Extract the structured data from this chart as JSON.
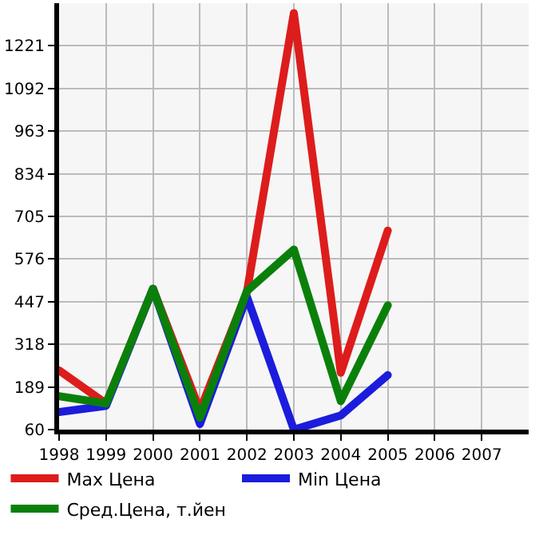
{
  "chart_data": {
    "type": "line",
    "x": [
      1998,
      1999,
      2000,
      2001,
      2002,
      2003,
      2004,
      2005
    ],
    "series": [
      {
        "name": "Max Цена",
        "color": "#dd1c1c",
        "values": [
          239,
          139,
          486,
          118,
          476,
          1320,
          232,
          662
        ]
      },
      {
        "name": "Min Цена",
        "color": "#1c1cdd",
        "values": [
          113,
          132,
          486,
          77,
          462,
          60,
          103,
          225
        ]
      },
      {
        "name": "Сред.Цена, т.йен",
        "color": "#0a800a",
        "values": [
          161,
          139,
          486,
          96,
          479,
          605,
          146,
          436
        ]
      }
    ],
    "xlim": [
      1998,
      2008
    ],
    "xticks": [
      1998,
      1999,
      2000,
      2001,
      2002,
      2003,
      2004,
      2005,
      2006,
      2007
    ],
    "ylim": [
      60,
      1350
    ],
    "yticks": [
      60,
      189,
      318,
      447,
      576,
      705,
      834,
      963,
      1092,
      1221
    ],
    "grid": true,
    "legend": "bottom",
    "marker": "none",
    "line_style": "solid"
  }
}
